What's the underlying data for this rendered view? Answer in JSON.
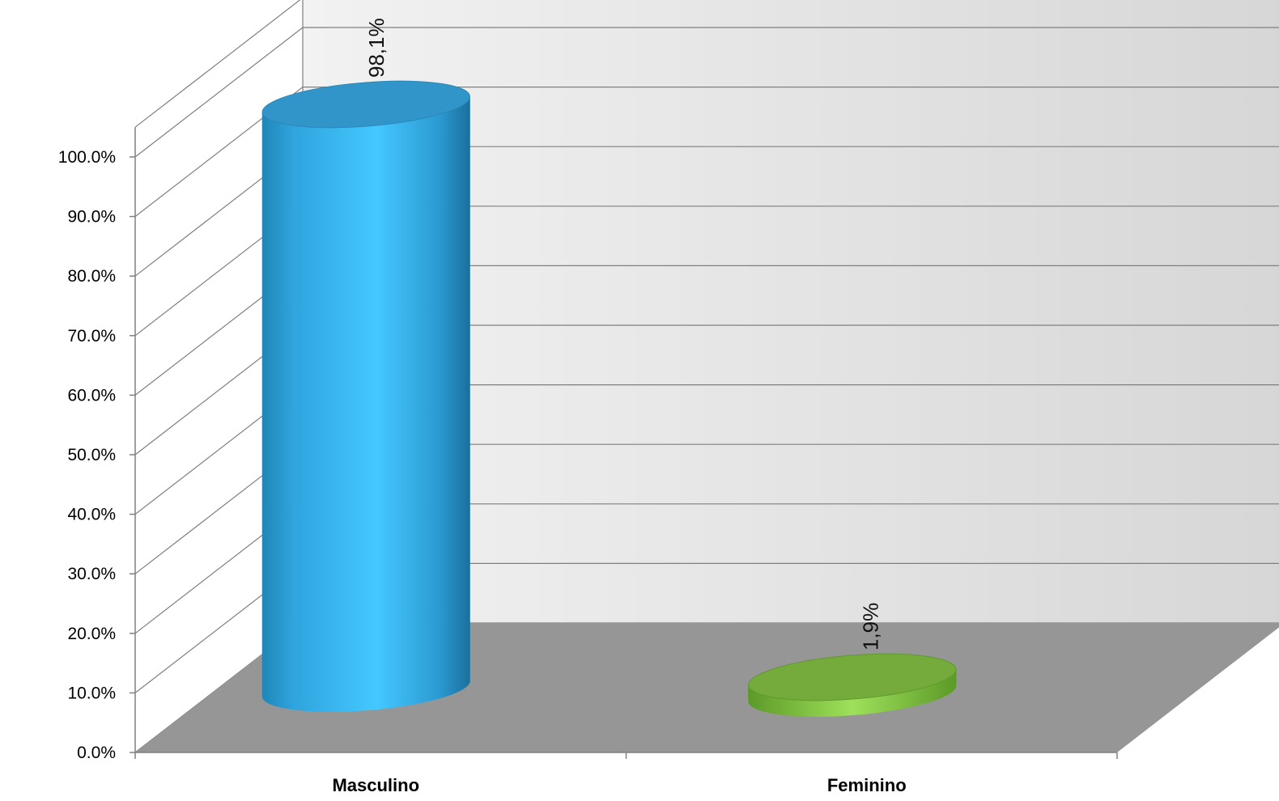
{
  "chart_data": {
    "type": "bar",
    "style": "3d-cylinder",
    "categories": [
      "Masculino",
      "Feminino"
    ],
    "values": [
      98.1,
      1.9
    ],
    "data_labels": [
      "98,1%",
      "1,9%"
    ],
    "y_ticks": [
      "0.0%",
      "10.0%",
      "20.0%",
      "30.0%",
      "40.0%",
      "50.0%",
      "60.0%",
      "70.0%",
      "80.0%",
      "90.0%",
      "100.0%"
    ],
    "ylim": [
      0,
      100
    ],
    "grid": true,
    "legend": "none",
    "colors": {
      "Masculino": "#3ec0f7",
      "Feminino": "#80c040",
      "floor": "#969696",
      "wall": "#e2e2e2",
      "gridline": "#7f7f7f"
    }
  }
}
